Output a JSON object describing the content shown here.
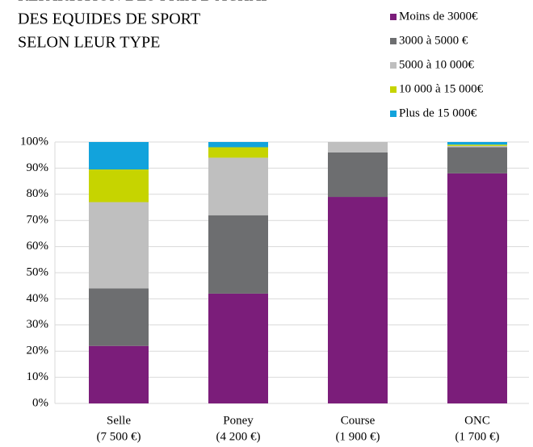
{
  "chart_data": {
    "type": "stacked_bar",
    "title": [
      "REPARTITION DES PRIX D'ACHAT",
      "DES EQUIDES DE SPORT",
      "SELON LEUR TYPE"
    ],
    "categories": [
      "Selle",
      "Poney",
      "Course",
      "ONC"
    ],
    "category_sublabels": [
      "(7 500 €)",
      "(4 200 €)",
      "(1 900 €)",
      "(1 700 €)"
    ],
    "series": [
      {
        "name": "Moins de 3000€",
        "color": "#7b1d7a",
        "values": [
          22,
          42,
          79,
          88
        ]
      },
      {
        "name": "3000 à 5000 €",
        "color": "#6d6e70",
        "values": [
          22,
          30,
          17,
          10
        ]
      },
      {
        "name": "5000 à 10 000€",
        "color": "#bfbfbf",
        "values": [
          33,
          22,
          4,
          0.5
        ]
      },
      {
        "name": "10 000 à 15 000€",
        "color": "#c6d400",
        "values": [
          12.5,
          4,
          0,
          0.5
        ]
      },
      {
        "name": "Plus de 15 000€",
        "color": "#12a3dc",
        "values": [
          10.5,
          2,
          0,
          1
        ]
      }
    ],
    "ylim": [
      0,
      100
    ],
    "yticks": [
      {
        "value": 0,
        "label": "0%"
      },
      {
        "value": 10,
        "label": "10%"
      },
      {
        "value": 20,
        "label": "20%"
      },
      {
        "value": 30,
        "label": "30%"
      },
      {
        "value": 40,
        "label": "40%"
      },
      {
        "value": 50,
        "label": "50%"
      },
      {
        "value": 60,
        "label": "60%"
      },
      {
        "value": 70,
        "label": "70%"
      },
      {
        "value": 80,
        "label": "80%"
      },
      {
        "value": 90,
        "label": "90%"
      },
      {
        "value": 100,
        "label": "100%"
      }
    ],
    "grid": true
  }
}
